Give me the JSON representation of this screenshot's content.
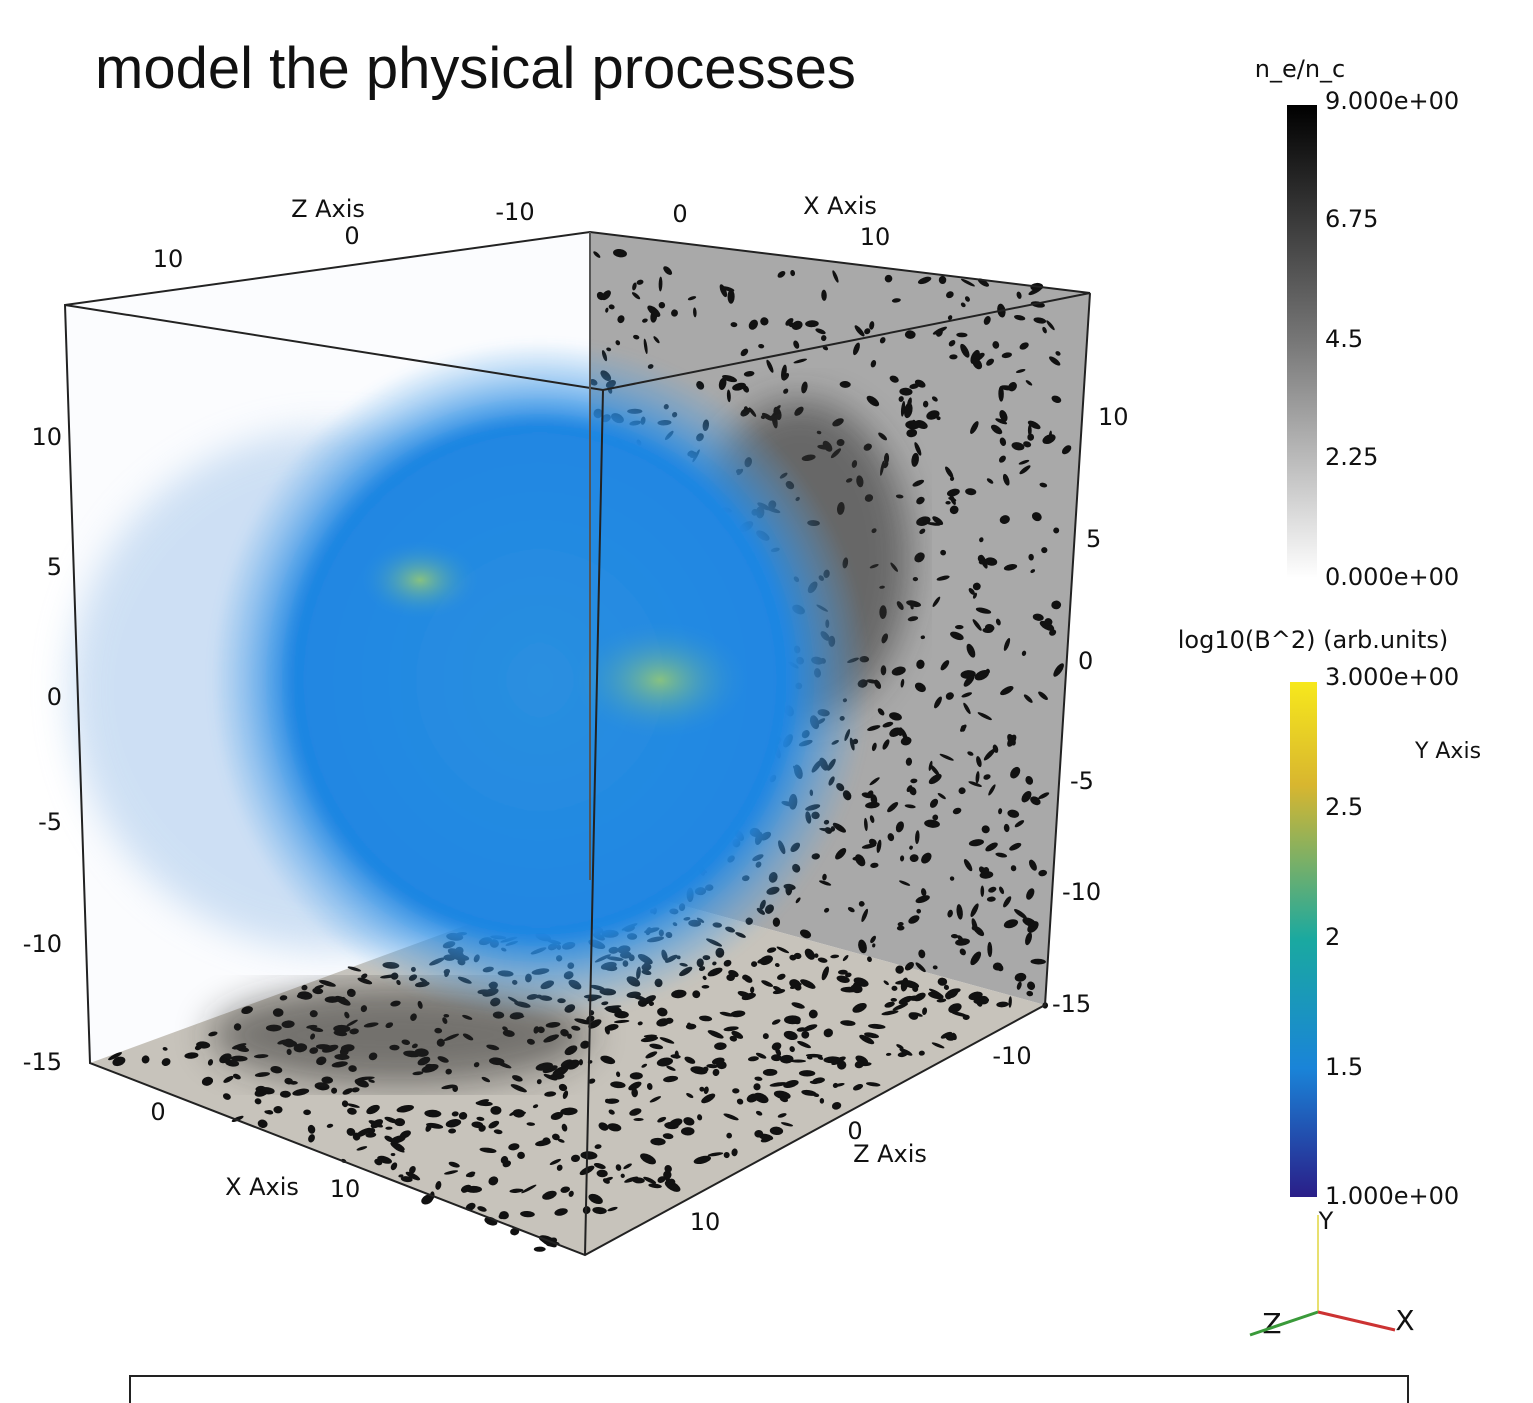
{
  "title": "model the physical processes",
  "scene": {
    "top_z_axis_label": "Z Axis",
    "top_z_ticks": [
      "10",
      "0",
      "-10"
    ],
    "top_x_axis_label": "X Axis",
    "top_x_ticks": [
      "0",
      "10"
    ],
    "left_y_ticks": [
      "10",
      "5",
      "0",
      "-5",
      "-10",
      "-15"
    ],
    "right_y_ticks": [
      "10",
      "5",
      "0",
      "-5",
      "-10",
      "-15"
    ],
    "bottom_x_axis_label": "X Axis",
    "bottom_x_ticks": [
      "0",
      "10"
    ],
    "bottom_z_axis_label": "Z Axis",
    "bottom_z_ticks": [
      "-10",
      "0",
      "10"
    ],
    "side_y_axis_label": "Y Axis"
  },
  "colorbars": [
    {
      "title": "n_e/n_c",
      "labels": [
        "9.000e+00",
        "6.75",
        "4.5",
        "2.25",
        "0.000e+00"
      ]
    },
    {
      "title": "log10(B^2) (arb.units)",
      "labels": [
        "3.000e+00",
        "2.5",
        "2",
        "1.5",
        "1.000e+00"
      ]
    }
  ],
  "orientation": {
    "y": "Y",
    "z": "Z",
    "x": "X"
  }
}
